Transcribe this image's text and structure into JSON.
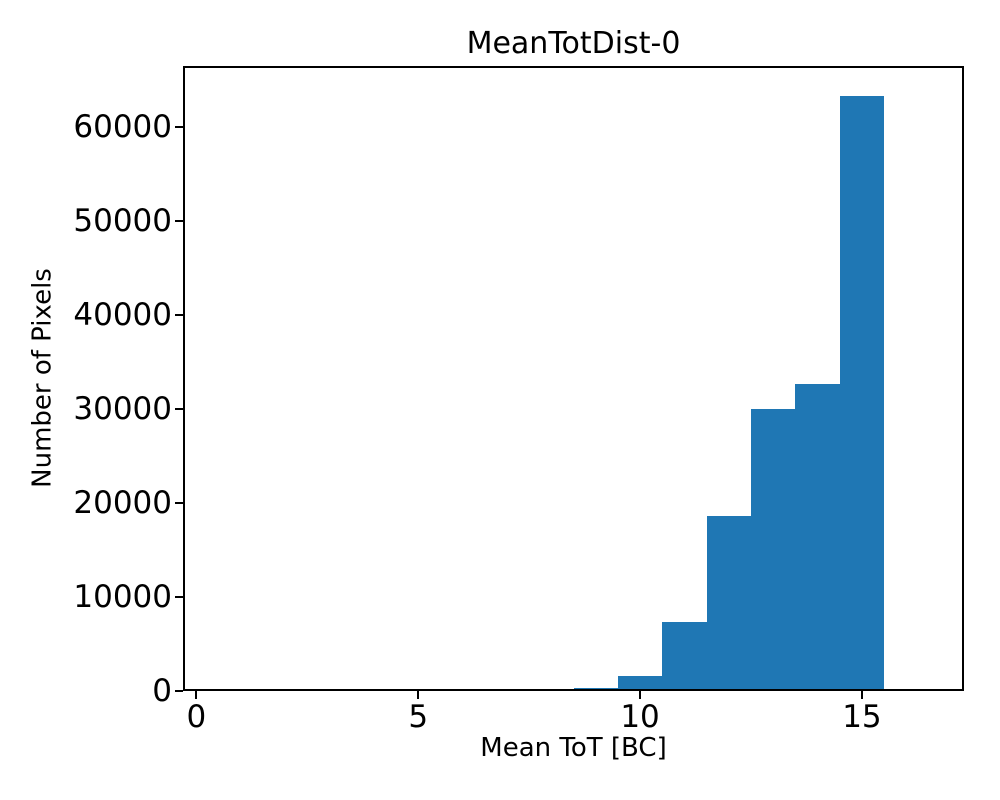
{
  "figure": {
    "background": "#ffffff",
    "text_color": "#000000"
  },
  "chart_data": {
    "type": "bar",
    "subtype": "histogram",
    "title": "MeanTotDist-0",
    "xlabel": "Mean ToT [BC]",
    "ylabel": "Number of Pixels",
    "bar_color": "#1f77b4",
    "bin_edges": [
      8.5,
      9.5,
      10.5,
      11.5,
      12.5,
      13.5,
      14.5,
      15.5
    ],
    "counts": [
      300,
      1600,
      7300,
      18600,
      30000,
      32700,
      63300
    ],
    "xlim": [
      -0.3,
      17.3
    ],
    "ylim": [
      0,
      66465
    ],
    "xticks": [
      0,
      5,
      10,
      15
    ],
    "yticks": [
      0,
      10000,
      20000,
      30000,
      40000,
      50000,
      60000
    ],
    "grid": false,
    "legend": null
  }
}
